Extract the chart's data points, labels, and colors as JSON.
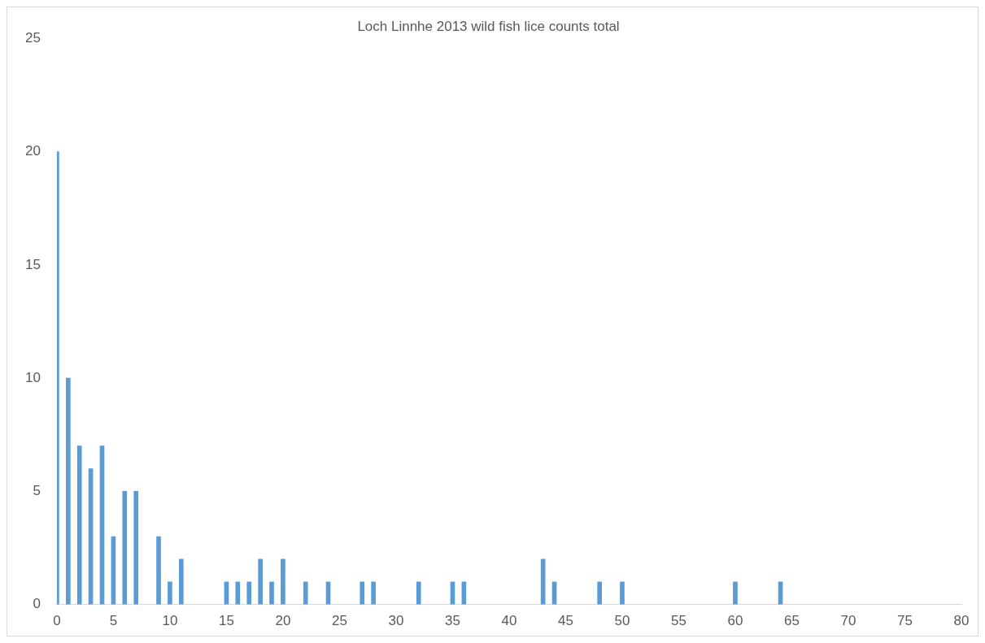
{
  "chart_data": {
    "type": "bar",
    "title": "Loch Linnhe 2013 wild fish lice counts total",
    "x": [
      0,
      1,
      2,
      3,
      4,
      5,
      6,
      7,
      9,
      10,
      11,
      15,
      16,
      17,
      18,
      19,
      20,
      22,
      24,
      27,
      28,
      32,
      35,
      36,
      43,
      44,
      48,
      50,
      60,
      64
    ],
    "values": [
      20,
      10,
      7,
      6,
      7,
      3,
      5,
      5,
      3,
      1,
      2,
      1,
      1,
      1,
      2,
      1,
      2,
      1,
      1,
      1,
      1,
      1,
      1,
      1,
      2,
      1,
      1,
      1,
      1,
      1
    ],
    "color": "#5b9bd5",
    "xlim": [
      0,
      80
    ],
    "xticks": [
      0,
      5,
      10,
      15,
      20,
      25,
      30,
      35,
      40,
      45,
      50,
      55,
      60,
      65,
      70,
      75,
      80
    ],
    "ylim": [
      0,
      25
    ],
    "yticks": [
      0,
      5,
      10,
      15,
      20,
      25
    ]
  }
}
